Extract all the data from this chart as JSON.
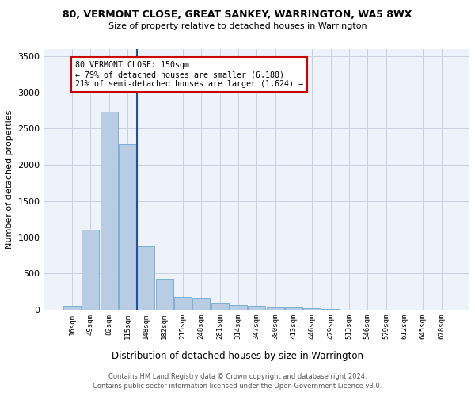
{
  "title_line1": "80, VERMONT CLOSE, GREAT SANKEY, WARRINGTON, WA5 8WX",
  "title_line2": "Size of property relative to detached houses in Warrington",
  "xlabel": "Distribution of detached houses by size in Warrington",
  "ylabel": "Number of detached properties",
  "categories": [
    "16sqm",
    "49sqm",
    "82sqm",
    "115sqm",
    "148sqm",
    "182sqm",
    "215sqm",
    "248sqm",
    "281sqm",
    "314sqm",
    "347sqm",
    "380sqm",
    "413sqm",
    "446sqm",
    "479sqm",
    "513sqm",
    "546sqm",
    "579sqm",
    "612sqm",
    "645sqm",
    "678sqm"
  ],
  "values": [
    55,
    1100,
    2730,
    2290,
    870,
    430,
    175,
    165,
    90,
    60,
    55,
    30,
    30,
    25,
    10,
    0,
    0,
    0,
    0,
    0,
    0
  ],
  "bar_color": "#b8cce4",
  "bar_edge_color": "#7bafd4",
  "annotation_line1": "80 VERMONT CLOSE: 150sqm",
  "annotation_line2": "← 79% of detached houses are smaller (6,188)",
  "annotation_line3": "21% of semi-detached houses are larger (1,624) →",
  "vline_x": 4.0,
  "ylim": [
    0,
    3600
  ],
  "yticks": [
    0,
    500,
    1000,
    1500,
    2000,
    2500,
    3000,
    3500
  ],
  "footer1": "Contains HM Land Registry data © Crown copyright and database right 2024.",
  "footer2": "Contains public sector information licensed under the Open Government Licence v3.0.",
  "bg_color": "#eef2fb",
  "grid_color": "#c8d0e0",
  "vline_color": "#2050a0",
  "ann_box_edge": "#cc0000",
  "ann_box_face": "white"
}
